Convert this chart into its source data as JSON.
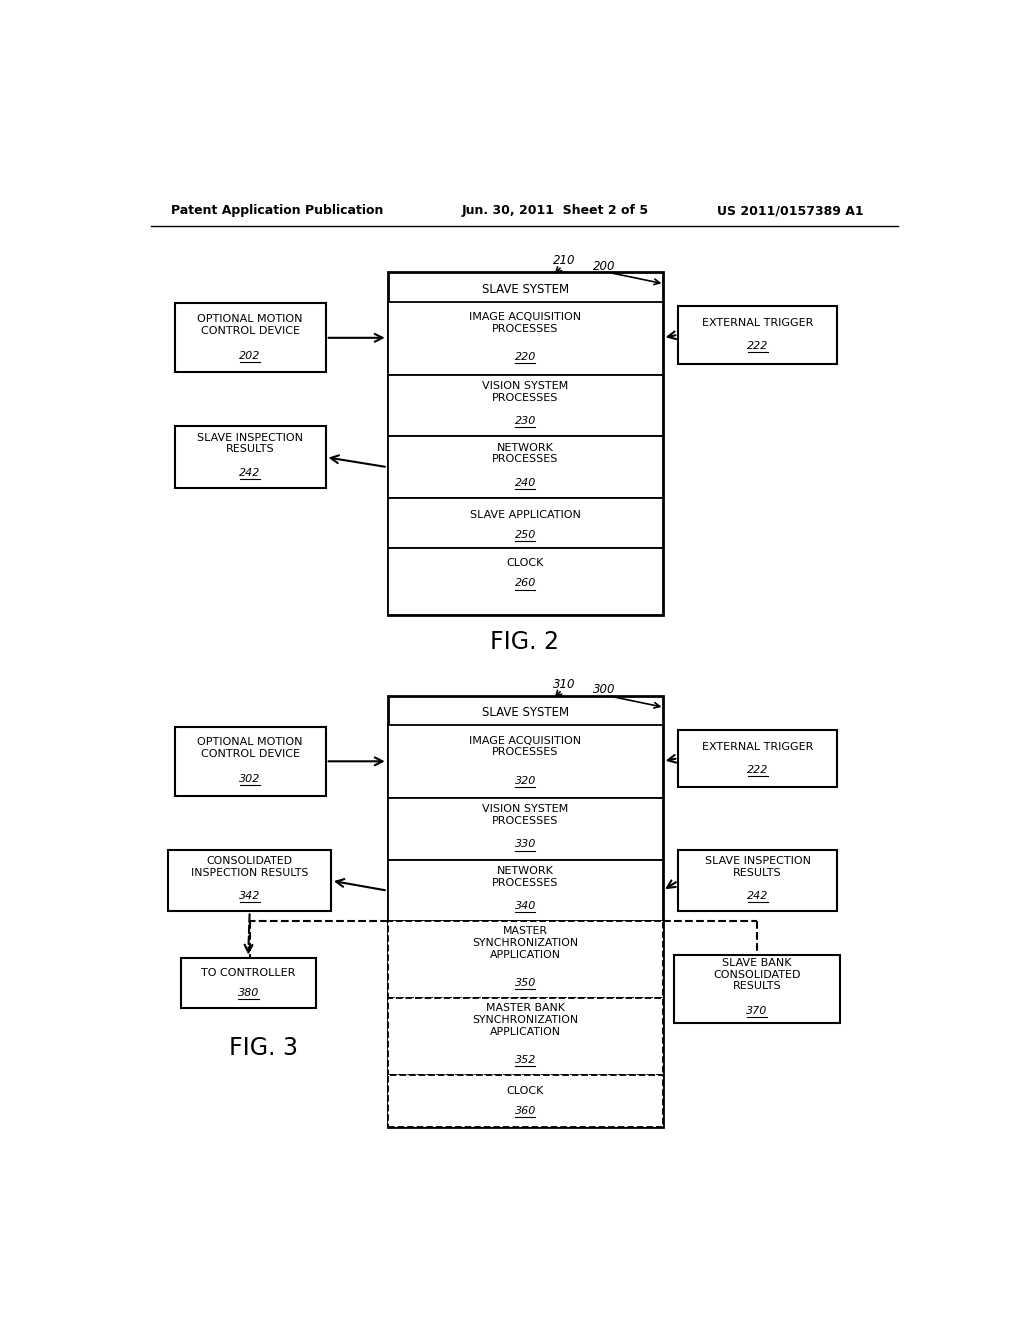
{
  "header_left": "Patent Application Publication",
  "header_center": "Jun. 30, 2011  Sheet 2 of 5",
  "header_right": "US 2011/0157389 A1",
  "fig2_label": "FIG. 2",
  "fig3_label": "FIG. 3",
  "bg_color": "#ffffff"
}
